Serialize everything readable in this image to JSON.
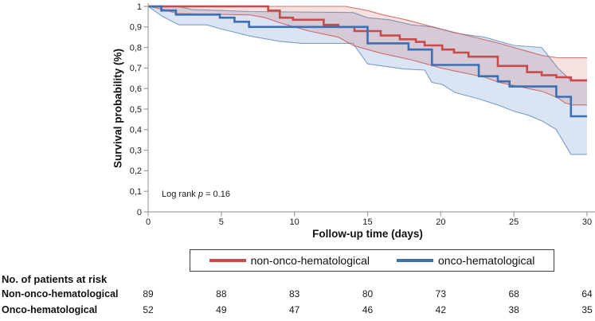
{
  "annotation_parts": {
    "before": "Log rank ",
    "p": "p",
    "after": " = 0.16"
  },
  "chart_data": {
    "type": "line",
    "subtype": "kaplan-meier-step-with-confidence-bands",
    "title": "",
    "xlabel": "Follow-up time (days)",
    "ylabel": "Survival probability (%)",
    "xlim": [
      0,
      30
    ],
    "ylim": [
      0,
      1
    ],
    "grid": false,
    "legend_position": "bottom-box",
    "annotation": "Log rank p = 0.16",
    "x_ticks": [
      {
        "label": "0",
        "value": 0
      },
      {
        "label": "5",
        "value": 5
      },
      {
        "label": "10",
        "value": 10
      },
      {
        "label": "15",
        "value": 15
      },
      {
        "label": "20",
        "value": 20
      },
      {
        "label": "25",
        "value": 25
      },
      {
        "label": "30",
        "value": 30
      }
    ],
    "y_ticks": [
      {
        "label": "1",
        "value": 1
      },
      {
        "label": "0,9",
        "value": 0.9
      },
      {
        "label": "0,8",
        "value": 0.8
      },
      {
        "label": "0,7",
        "value": 0.7
      },
      {
        "label": "0,6",
        "value": 0.6
      },
      {
        "label": "0,5",
        "value": 0.5
      },
      {
        "label": "0,4",
        "value": 0.4
      },
      {
        "label": "0,3",
        "value": 0.3
      },
      {
        "label": "0,2",
        "value": 0.2
      },
      {
        "label": "0,1",
        "value": 0.1
      },
      {
        "label": "0",
        "value": 0
      }
    ],
    "series": [
      {
        "name": "non-onco-hematological",
        "color": "#C64C4A",
        "fill": "rgba(198,76,74,0.17)",
        "edge": "rgba(198,76,74,0.75)",
        "steps": [
          [
            0,
            1
          ],
          [
            8.2,
            0.98
          ],
          [
            9,
            0.945
          ],
          [
            9.9,
            0.935
          ],
          [
            12,
            0.91
          ],
          [
            13,
            0.9
          ],
          [
            14.1,
            0.88
          ],
          [
            15.9,
            0.858
          ],
          [
            17.2,
            0.84
          ],
          [
            18.3,
            0.827
          ],
          [
            18.9,
            0.81
          ],
          [
            20.1,
            0.79
          ],
          [
            20.9,
            0.775
          ],
          [
            21.9,
            0.755
          ],
          [
            23.9,
            0.71
          ],
          [
            25.9,
            0.68
          ],
          [
            26.9,
            0.665
          ],
          [
            27.9,
            0.655
          ],
          [
            28.9,
            0.64
          ],
          [
            30,
            0.64
          ]
        ],
        "ci_upper": [
          [
            0,
            1
          ],
          [
            13.5,
            1
          ],
          [
            15,
            0.98
          ],
          [
            16,
            0.96
          ],
          [
            17.6,
            0.935
          ],
          [
            20,
            0.89
          ],
          [
            22,
            0.855
          ],
          [
            24,
            0.82
          ],
          [
            25,
            0.8
          ],
          [
            26,
            0.78
          ],
          [
            27,
            0.76
          ],
          [
            28,
            0.75
          ],
          [
            30,
            0.75
          ]
        ],
        "ci_lower": [
          [
            0,
            1
          ],
          [
            1,
            0.985
          ],
          [
            2,
            0.965
          ],
          [
            7,
            0.958
          ],
          [
            8,
            0.945
          ],
          [
            9,
            0.92
          ],
          [
            10,
            0.9
          ],
          [
            11,
            0.88
          ],
          [
            12,
            0.865
          ],
          [
            13,
            0.85
          ],
          [
            14,
            0.81
          ],
          [
            15,
            0.79
          ],
          [
            16,
            0.77
          ],
          [
            17,
            0.755
          ],
          [
            18,
            0.74
          ],
          [
            19,
            0.72
          ],
          [
            20,
            0.7
          ],
          [
            21,
            0.685
          ],
          [
            22,
            0.67
          ],
          [
            23,
            0.655
          ],
          [
            24,
            0.63
          ],
          [
            25,
            0.615
          ],
          [
            26,
            0.6
          ],
          [
            27,
            0.585
          ],
          [
            28,
            0.555
          ],
          [
            28.5,
            0.53
          ],
          [
            29,
            0.52
          ],
          [
            30,
            0.52
          ]
        ]
      },
      {
        "name": "onco-hematological",
        "color": "#3C6FB4",
        "fill": "rgba(100,142,205,0.24)",
        "edge": "rgba(96,137,190,0.8)",
        "steps": [
          [
            0,
            1
          ],
          [
            0.9,
            0.98
          ],
          [
            1.9,
            0.96
          ],
          [
            4.9,
            0.945
          ],
          [
            5.9,
            0.925
          ],
          [
            6.9,
            0.9
          ],
          [
            15,
            0.82
          ],
          [
            17.8,
            0.79
          ],
          [
            19.4,
            0.715
          ],
          [
            22.6,
            0.66
          ],
          [
            23.9,
            0.635
          ],
          [
            24.7,
            0.61
          ],
          [
            27.9,
            0.56
          ],
          [
            28.9,
            0.465
          ],
          [
            30,
            0.465
          ]
        ],
        "ci_upper": [
          [
            0,
            1
          ],
          [
            2,
            1
          ],
          [
            3,
            0.985
          ],
          [
            7,
            0.975
          ],
          [
            14,
            0.97
          ],
          [
            15,
            0.945
          ],
          [
            16.5,
            0.935
          ],
          [
            18,
            0.91
          ],
          [
            19.5,
            0.9
          ],
          [
            21,
            0.87
          ],
          [
            23,
            0.85
          ],
          [
            24,
            0.83
          ],
          [
            25,
            0.81
          ],
          [
            26.9,
            0.8
          ],
          [
            28,
            0.7
          ],
          [
            28.9,
            0.64
          ],
          [
            30,
            0.64
          ]
        ],
        "ci_lower": [
          [
            0,
            1
          ],
          [
            1,
            0.95
          ],
          [
            2.1,
            0.91
          ],
          [
            4,
            0.91
          ],
          [
            5,
            0.89
          ],
          [
            7,
            0.855
          ],
          [
            9,
            0.83
          ],
          [
            10.5,
            0.82
          ],
          [
            14,
            0.82
          ],
          [
            15,
            0.72
          ],
          [
            16,
            0.71
          ],
          [
            17.5,
            0.695
          ],
          [
            18.9,
            0.69
          ],
          [
            19.4,
            0.63
          ],
          [
            20.1,
            0.62
          ],
          [
            21,
            0.58
          ],
          [
            22.6,
            0.55
          ],
          [
            23.9,
            0.52
          ],
          [
            25,
            0.49
          ],
          [
            26,
            0.47
          ],
          [
            27,
            0.44
          ],
          [
            27.9,
            0.4
          ],
          [
            28.9,
            0.28
          ],
          [
            30,
            0.28
          ]
        ]
      }
    ],
    "risk_table": {
      "header": "No. of patients at risk",
      "time_points": [
        0,
        5,
        10,
        15,
        20,
        25,
        30
      ],
      "rows": [
        {
          "label": "Non-onco-hematological",
          "counts": [
            "89",
            "88",
            "83",
            "80",
            "73",
            "68",
            "64"
          ]
        },
        {
          "label": "Onco-hematological",
          "counts": [
            "52",
            "49",
            "47",
            "46",
            "42",
            "38",
            "35"
          ]
        }
      ]
    }
  }
}
